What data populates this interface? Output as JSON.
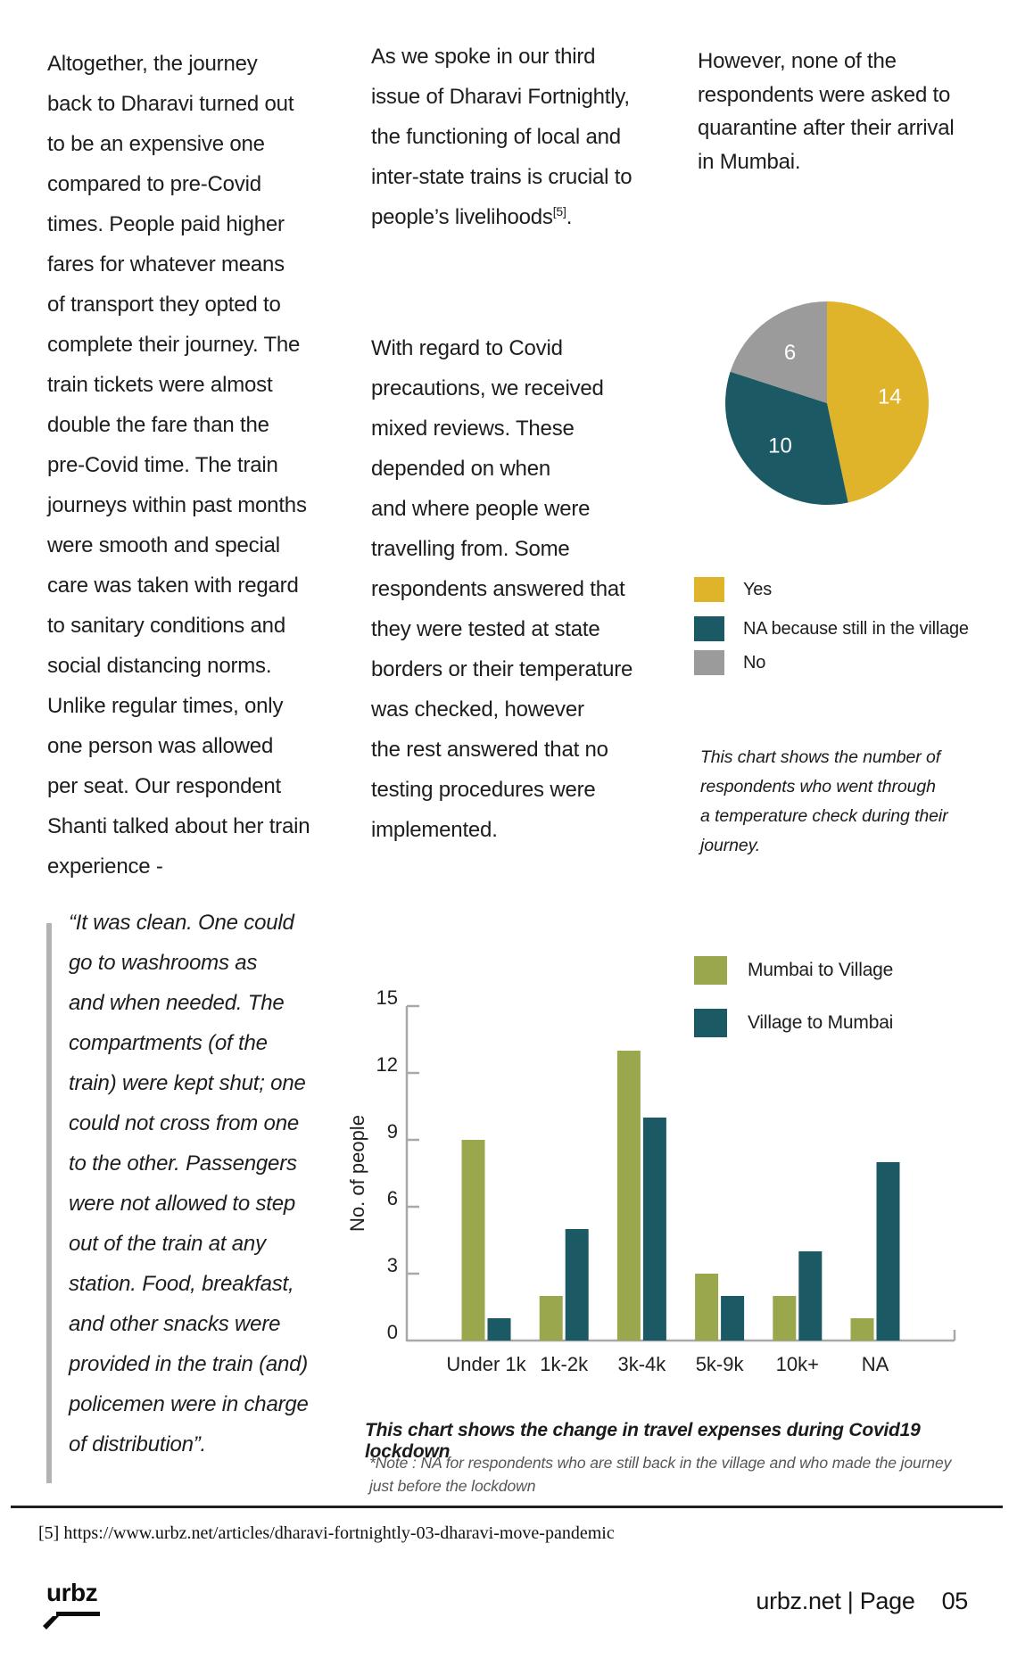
{
  "article": {
    "col_left": "Altogether, the journey\nback to Dharavi turned out\nto be an expensive one\ncompared to pre-Covid\ntimes. People paid higher\nfares for whatever means\nof transport they opted to\ncomplete their journey. The\ntrain tickets were almost\ndouble the fare than the\npre-Covid time. The train\njourneys within past months\nwere smooth and special\ncare was taken with regard\nto sanitary conditions and\nsocial distancing norms.\nUnlike regular times, only\none person was allowed\nper seat. Our respondent\nShanti talked about her train\nexperience -",
    "col_mid_p1": "As we spoke in our third\nissue of Dharavi Fortnightly,\nthe functioning of local and\ninter-state trains is crucial to\npeople’s livelihoods",
    "col_mid_p1_sup": "[5]",
    "col_mid_p1_period": ".",
    "col_mid_p2": "With regard to Covid\nprecautions, we received\nmixed reviews. These\ndepended on when\nand where people were\ntravelling from. Some\nrespondents answered that\nthey were tested at state\nborders or their temperature\nwas checked, however\nthe rest answered that no\ntesting procedures were\nimplemented.",
    "col_right": "However, none of the\nrespondents were asked to\nquarantine after their arrival\nin Mumbai.",
    "quote": "“It was clean. One could\ngo to washrooms as\nand when needed. The\ncompartments (of the\ntrain) were kept shut; one\ncould not cross from one\nto the other. Passengers\nwere not allowed to step\nout of the train at any\nstation. Food, breakfast,\nand other snacks were\nprovided in the train (and)\npolicemen were in charge\nof distribution”."
  },
  "chart_data": [
    {
      "type": "pie",
      "labels": [
        "Yes",
        "NA because still in the village",
        "No"
      ],
      "values": [
        14,
        10,
        6
      ],
      "colors": [
        "#dfb32a",
        "#1b5a64",
        "#9b9b9b"
      ],
      "start_angle_deg": 0,
      "direction": "clockwise",
      "data_labels_shown": true,
      "legend_position": "below",
      "caption": "This chart shows the number of\nrespondents who went through\na temperature check during their\njourney."
    },
    {
      "type": "bar",
      "categories": [
        "Under 1k",
        "1k-2k",
        "3k-4k",
        "5k-9k",
        "10k+",
        "NA"
      ],
      "series": [
        {
          "name": "Mumbai to Village",
          "color": "#9aa74d",
          "values": [
            9,
            2,
            13,
            3,
            2,
            1
          ]
        },
        {
          "name": "Village to Mumbai",
          "color": "#1b5a64",
          "values": [
            1,
            5,
            10,
            2,
            4,
            8
          ]
        }
      ],
      "xlabel": "",
      "ylabel": "No. of people",
      "ylim": [
        0,
        15
      ],
      "yticks": [
        0,
        3,
        6,
        9,
        12,
        15
      ],
      "grid": false,
      "legend_position": "top-right",
      "caption": "This chart shows the change in travel expenses during Covid19 lockdown",
      "note": "*Note : NA for respondents who are still back in the village and who made the journey\njust before the lockdown"
    }
  ],
  "footnote": {
    "text": "[5] https://www.urbz.net/articles/dharavi-fortnightly-03-dharavi-move-pandemic"
  },
  "footer": {
    "logo_text": "urbz",
    "site_page": "urbz.net | Page",
    "page_num": "05"
  },
  "colors": {
    "pie_yes": "#dfb32a",
    "pie_na": "#1b5a64",
    "pie_no": "#9b9b9b",
    "bar_mumbai_to_village": "#9aa74d",
    "bar_village_to_mumbai": "#1b5a64",
    "axis_gray": "#a8a8a8",
    "quote_bar_gray": "#b3b3b3"
  }
}
